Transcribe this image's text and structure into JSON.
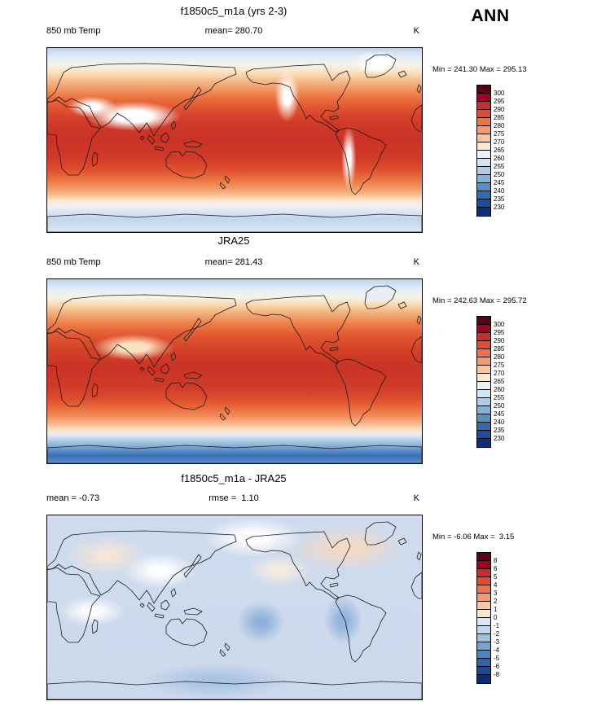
{
  "page": {
    "season": "ANN"
  },
  "panels": [
    {
      "title": "f1850c5_m1a (yrs 2-3)",
      "meta_left": "850 mb Temp",
      "meta_center": "mean= 280.70",
      "meta_right": "K",
      "minmax": "Min = 241.30 Max = 295.13",
      "colorbar": {
        "labels": [
          "300",
          "295",
          "290",
          "285",
          "280",
          "275",
          "270",
          "265",
          "260",
          "255",
          "250",
          "245",
          "240",
          "235",
          "230"
        ],
        "colors": [
          "#5c0013",
          "#a00021",
          "#c62e2e",
          "#e14b31",
          "#ee7147",
          "#f59a6c",
          "#fbc69d",
          "#fde7cd",
          "#f0f2ee",
          "#d4e4f4",
          "#aecde8",
          "#82b1da",
          "#5490c6",
          "#306daf",
          "#1b4f9c",
          "#0b2e7a"
        ]
      }
    },
    {
      "title": "JRA25",
      "meta_left": "850 mb Temp",
      "meta_center": "mean= 281.43",
      "meta_right": "K",
      "minmax": "Min = 242.63 Max = 295.72",
      "colorbar": {
        "labels": [
          "300",
          "295",
          "290",
          "285",
          "280",
          "275",
          "270",
          "265",
          "260",
          "255",
          "250",
          "245",
          "240",
          "235",
          "230"
        ],
        "colors": [
          "#5c0013",
          "#a00021",
          "#c62e2e",
          "#e14b31",
          "#ee7147",
          "#f59a6c",
          "#fbc69d",
          "#fde7cd",
          "#f0f2ee",
          "#d4e4f4",
          "#aecde8",
          "#82b1da",
          "#5490c6",
          "#306daf",
          "#1b4f9c",
          "#0b2e7a"
        ]
      }
    },
    {
      "title": "f1850c5_m1a - JRA25",
      "meta_left": "mean = -0.73",
      "meta_center": "rmse =  1.10",
      "meta_right": "K",
      "minmax": "Min = -6.06 Max =  3.15",
      "colorbar": {
        "labels": [
          "8",
          "6",
          "5",
          "4",
          "3",
          "2",
          "1",
          "0",
          "-1",
          "-2",
          "-3",
          "-4",
          "-5",
          "-6",
          "-8"
        ],
        "colors": [
          "#5c0013",
          "#a00021",
          "#c62e2e",
          "#e14b31",
          "#ee7147",
          "#f59a6c",
          "#fbc69d",
          "#fde7cd",
          "#dce8f5",
          "#c2d8ee",
          "#9dc1e2",
          "#74a4d4",
          "#4b86c4",
          "#2c66ae",
          "#1a4a9c",
          "#0a2d78"
        ]
      }
    }
  ],
  "chart_data": [
    {
      "type": "heatmap",
      "title": "f1850c5_m1a (yrs 2-3)",
      "variable": "850 mb Temp",
      "season": "ANN",
      "units": "K",
      "mean": 280.7,
      "min": 241.3,
      "max": 295.13,
      "contour_levels": [
        230,
        235,
        240,
        245,
        250,
        255,
        260,
        265,
        270,
        275,
        280,
        285,
        290,
        295,
        300
      ],
      "projection": "global lat-lon map",
      "description": "Filled contour map of annual-mean 850 mb temperature; warm red band (285-295 K) across tropics, cooling to light blue (230-255 K) toward both poles; white gaps over high terrain (Tibet, Rockies, Andes, Greenland)."
    },
    {
      "type": "heatmap",
      "title": "JRA25",
      "variable": "850 mb Temp",
      "season": "ANN",
      "units": "K",
      "mean": 281.43,
      "min": 242.63,
      "max": 295.72,
      "contour_levels": [
        230,
        235,
        240,
        245,
        250,
        255,
        260,
        265,
        270,
        275,
        280,
        285,
        290,
        295,
        300
      ],
      "projection": "global lat-lon map",
      "description": "Reanalysis (JRA25) annual-mean 850 mb temperature; same structure as model with deeper blue (cold) band along Antarctica."
    },
    {
      "type": "heatmap",
      "title": "f1850c5_m1a - JRA25",
      "variable": "850 mb Temp difference (model minus reanalysis)",
      "season": "ANN",
      "units": "K",
      "mean": -0.73,
      "rmse": 1.1,
      "min": -6.06,
      "max": 3.15,
      "contour_levels": [
        -8,
        -6,
        -5,
        -4,
        -3,
        -2,
        -1,
        0,
        1,
        2,
        3,
        4,
        5,
        6,
        8
      ],
      "projection": "global lat-lon map",
      "description": "Difference map mostly in the -1 to 0 K pale blue range, scattered 0 to +2 K warm patches over northern continents, -2 to -4 K cool blobs in SE Pacific and near South America."
    }
  ]
}
